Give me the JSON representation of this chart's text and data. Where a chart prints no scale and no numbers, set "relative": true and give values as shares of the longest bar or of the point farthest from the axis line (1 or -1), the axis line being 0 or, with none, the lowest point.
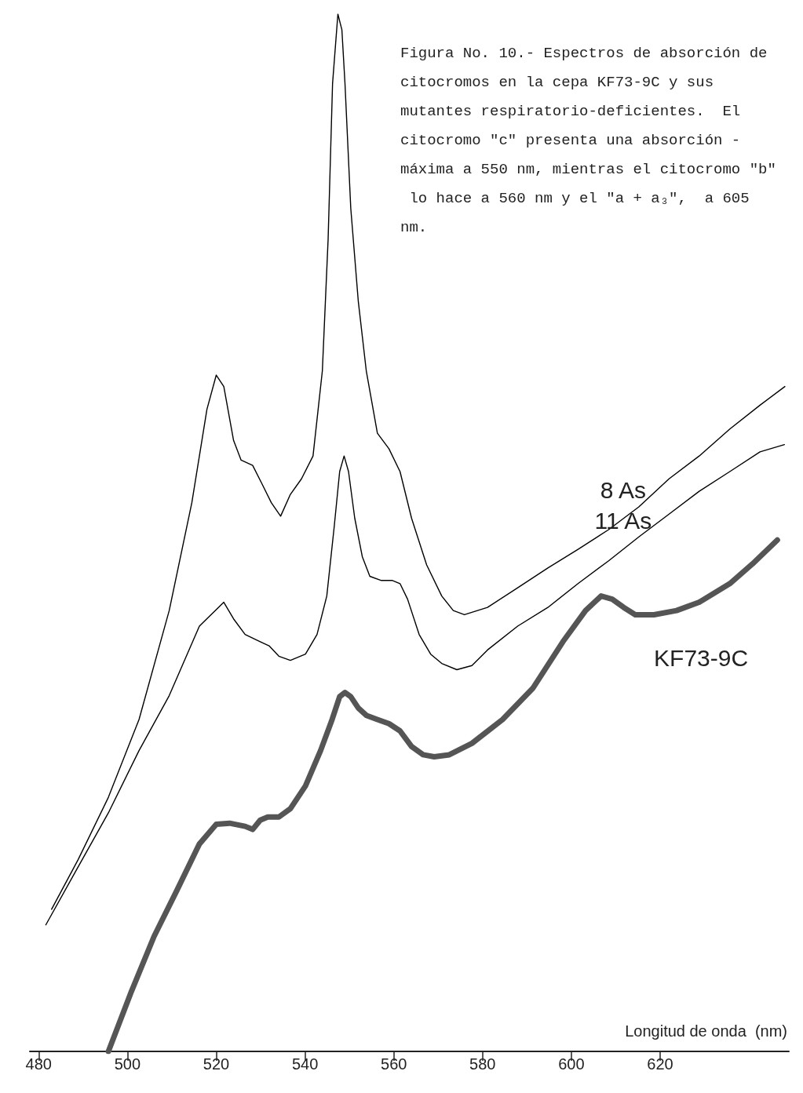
{
  "chart_data": {
    "type": "line",
    "relative": true,
    "title": "Figura No. 10.- Espectros de absorción de citocromos en la cepa KF73-9C y sus mutantes respiratorio-deficientes.  El citocromo \"c\" presenta una absorción - máxima a 550 nm, mientras el citocromo \"b\" lo hace a 560 nm y el \"a + a₃\",  a 605 nm.",
    "xlabel": "Longitud de onda  (nm)",
    "xlim": [
      478,
      649
    ],
    "xticks": [
      480,
      500,
      520,
      540,
      560,
      580,
      600,
      620
    ],
    "grid": false,
    "legend": false,
    "marker": "none",
    "line_style": "solid",
    "series": [
      {
        "name": "8 As",
        "color": "#000000",
        "x": [
          482.9,
          488.9,
          495.7,
          502.6,
          509.4,
          514.5,
          517.9,
          520.0,
          521.7,
          523.9,
          525.6,
          528.2,
          530.2,
          532.4,
          534.5,
          536.7,
          539.2,
          541.8,
          543.9,
          545.2,
          546.2,
          547.4,
          548.3,
          549.0,
          550.3,
          552.0,
          553.8,
          556.3,
          558.9,
          561.4,
          564.0,
          567.4,
          570.8,
          573.4,
          575.9,
          581.1,
          587.9,
          594.7,
          601.5,
          608.4,
          615.2,
          622.0,
          628.8,
          635.7,
          642.5,
          648.1
        ],
        "values": [
          0.137,
          0.185,
          0.245,
          0.32,
          0.425,
          0.529,
          0.619,
          0.652,
          0.641,
          0.589,
          0.57,
          0.565,
          0.548,
          0.529,
          0.516,
          0.537,
          0.552,
          0.574,
          0.656,
          0.783,
          0.933,
          1.0,
          0.985,
          0.933,
          0.813,
          0.723,
          0.656,
          0.596,
          0.581,
          0.559,
          0.514,
          0.469,
          0.439,
          0.425,
          0.421,
          0.428,
          0.447,
          0.466,
          0.484,
          0.503,
          0.525,
          0.552,
          0.574,
          0.6,
          0.623,
          0.641
        ]
      },
      {
        "name": "11 As",
        "color": "#000000",
        "x": [
          481.6,
          488.9,
          495.7,
          502.6,
          509.4,
          516.2,
          521.7,
          523.9,
          526.5,
          529.9,
          531.9,
          534.1,
          536.7,
          540.1,
          542.7,
          544.9,
          546.6,
          547.8,
          548.8,
          549.8,
          551.2,
          552.9,
          554.6,
          557.2,
          559.7,
          561.4,
          563.1,
          565.7,
          568.3,
          570.8,
          574.2,
          577.6,
          581.1,
          587.9,
          594.7,
          601.5,
          608.4,
          615.2,
          622.0,
          628.8,
          635.7,
          642.5,
          648.0
        ],
        "values": [
          0.122,
          0.178,
          0.23,
          0.29,
          0.343,
          0.41,
          0.433,
          0.417,
          0.402,
          0.395,
          0.391,
          0.381,
          0.377,
          0.383,
          0.402,
          0.439,
          0.507,
          0.559,
          0.574,
          0.559,
          0.514,
          0.477,
          0.458,
          0.454,
          0.454,
          0.451,
          0.436,
          0.402,
          0.383,
          0.374,
          0.368,
          0.372,
          0.387,
          0.41,
          0.428,
          0.451,
          0.473,
          0.496,
          0.518,
          0.54,
          0.559,
          0.578,
          0.585
        ]
      },
      {
        "name": "KF73-9C",
        "color": "#555555",
        "x": [
          495.7,
          500.9,
          506.0,
          511.1,
          516.2,
          520.0,
          523.0,
          526.5,
          528.2,
          529.9,
          531.6,
          534.1,
          536.7,
          540.1,
          543.5,
          546.1,
          547.8,
          549.0,
          550.3,
          552.0,
          553.8,
          556.3,
          558.9,
          561.4,
          564.0,
          566.6,
          569.1,
          572.5,
          577.6,
          584.5,
          591.3,
          598.1,
          603.2,
          606.7,
          609.2,
          611.8,
          614.4,
          618.6,
          623.7,
          628.8,
          635.7,
          640.8,
          646.4
        ],
        "values": [
          0.0,
          0.058,
          0.111,
          0.155,
          0.2,
          0.219,
          0.22,
          0.217,
          0.214,
          0.223,
          0.226,
          0.226,
          0.234,
          0.256,
          0.29,
          0.32,
          0.342,
          0.346,
          0.342,
          0.331,
          0.324,
          0.32,
          0.316,
          0.309,
          0.294,
          0.286,
          0.284,
          0.286,
          0.297,
          0.32,
          0.35,
          0.395,
          0.425,
          0.439,
          0.436,
          0.428,
          0.421,
          0.421,
          0.425,
          0.433,
          0.451,
          0.47,
          0.493
        ]
      }
    ]
  }
}
